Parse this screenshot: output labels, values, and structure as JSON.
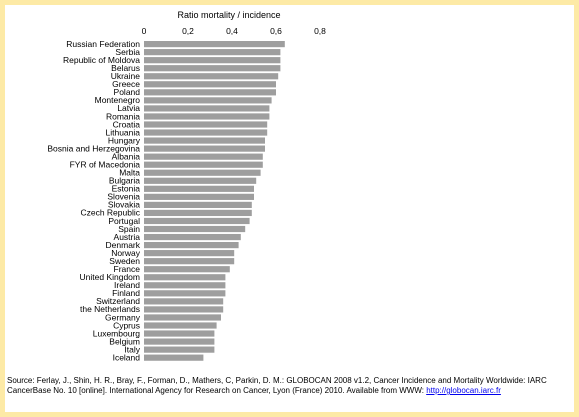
{
  "chart_data": {
    "type": "bar",
    "orientation": "horizontal",
    "title": "Ratio mortality / incidence",
    "xlim": [
      0,
      0.8
    ],
    "ticks": [
      0,
      0.2,
      0.4,
      0.6,
      0.8
    ],
    "tick_labels": [
      "0",
      "0,2",
      "0,4",
      "0,6",
      "0,8"
    ],
    "grid": false,
    "categories": [
      "Russian Federation",
      "Serbia",
      "Republic of Moldova",
      "Belarus",
      "Ukraine",
      "Greece",
      "Poland",
      "Montenegro",
      "Latvia",
      "Romania",
      "Croatia",
      "Lithuania",
      "Hungary",
      "Bosnia and Herzegovina",
      "Albania",
      "FYR of Macedonia",
      "Malta",
      "Bulgaria",
      "Estonia",
      "Slovenia",
      "Slovakia",
      "Czech Republic",
      "Portugal",
      "Spain",
      "Austria",
      "Denmark",
      "Norway",
      "Sweden",
      "France",
      "United Kingdom",
      "Ireland",
      "Finland",
      "Switzerland",
      "the Netherlands",
      "Germany",
      "Cyprus",
      "Luxembourg",
      "Belgium",
      "Italy",
      "Iceland"
    ],
    "values": [
      0.64,
      0.62,
      0.62,
      0.62,
      0.61,
      0.6,
      0.6,
      0.58,
      0.57,
      0.57,
      0.56,
      0.56,
      0.55,
      0.55,
      0.54,
      0.54,
      0.53,
      0.51,
      0.5,
      0.5,
      0.49,
      0.49,
      0.48,
      0.46,
      0.44,
      0.43,
      0.41,
      0.41,
      0.39,
      0.37,
      0.37,
      0.37,
      0.36,
      0.36,
      0.35,
      0.33,
      0.32,
      0.32,
      0.32,
      0.27
    ]
  },
  "source": {
    "text": "Source: Ferlay, J., Shin, H. R., Bray, F., Forman, D., Mathers, C, Parkin, D. M.: GLOBOCAN 2008 v1.2, Cancer Incidence and Mortality Worldwide: IARC CancerBase No. 10 [online]. International Agency for Research on Cancer, Lyon (France) 2010. Available from WWW: ",
    "link": "http://globocan.iarc.fr"
  },
  "colors": {
    "background": "#fdeaa6",
    "panel": "#ffffff",
    "bar": "#9e9e9e",
    "link": "#0000ee"
  }
}
